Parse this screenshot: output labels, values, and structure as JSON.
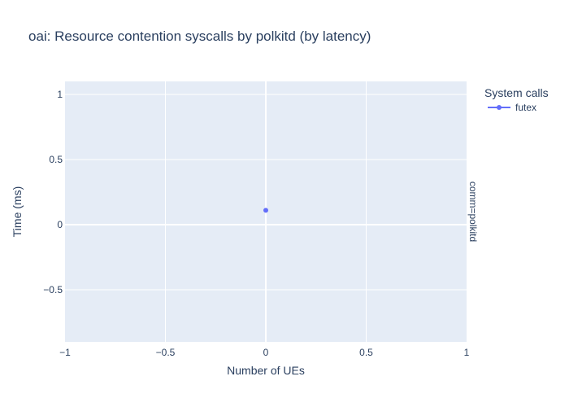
{
  "chart_data": {
    "type": "scatter",
    "title": "oai: Resource contention syscalls by polkitd (by latency)",
    "xlabel": "Number of UEs",
    "ylabel": "Time (ms)",
    "xlim": [
      -1,
      1
    ],
    "ylim": [
      -0.9,
      1.1
    ],
    "x_ticks": [
      -1,
      -0.5,
      0,
      0.5,
      1
    ],
    "x_tick_labels": [
      "−1",
      "−0.5",
      "0",
      "0.5",
      "1"
    ],
    "y_ticks": [
      -0.5,
      0,
      0.5,
      1
    ],
    "y_tick_labels": [
      "−0.5",
      "0",
      "0.5",
      "1"
    ],
    "grid": true,
    "facet_label": "comm=polkitd",
    "legend": {
      "title": "System calls",
      "placement": "top-right"
    },
    "series": [
      {
        "name": "futex",
        "color": "#636efa",
        "x": [
          0
        ],
        "y": [
          0.11
        ]
      }
    ]
  }
}
